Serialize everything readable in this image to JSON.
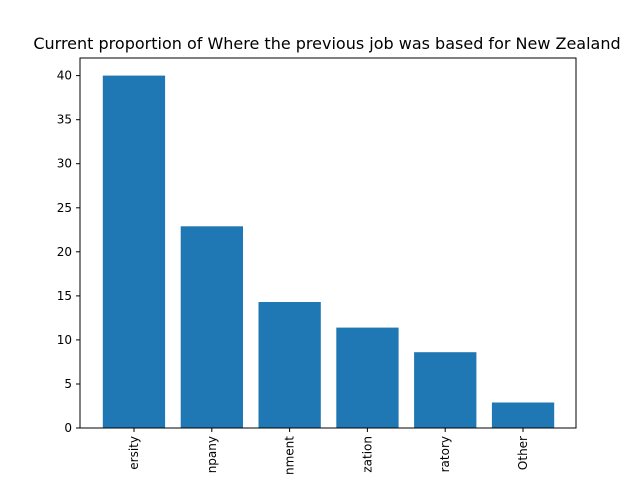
{
  "chart_data": {
    "type": "bar",
    "title": "Current proportion of Where the previous job was based for New Zealand",
    "xlabel": "",
    "ylabel": "",
    "categories": [
      "ersity",
      "npany",
      "nment",
      "zation",
      "ratory",
      "Other"
    ],
    "values": [
      40.0,
      22.9,
      14.3,
      11.4,
      8.6,
      2.9
    ],
    "ylim": [
      0,
      42
    ],
    "yticks": [
      "0",
      "5",
      "10",
      "15",
      "20",
      "25",
      "30",
      "35",
      "40"
    ],
    "bar_color": "#1f77b4",
    "grid": false,
    "legend": "none"
  }
}
